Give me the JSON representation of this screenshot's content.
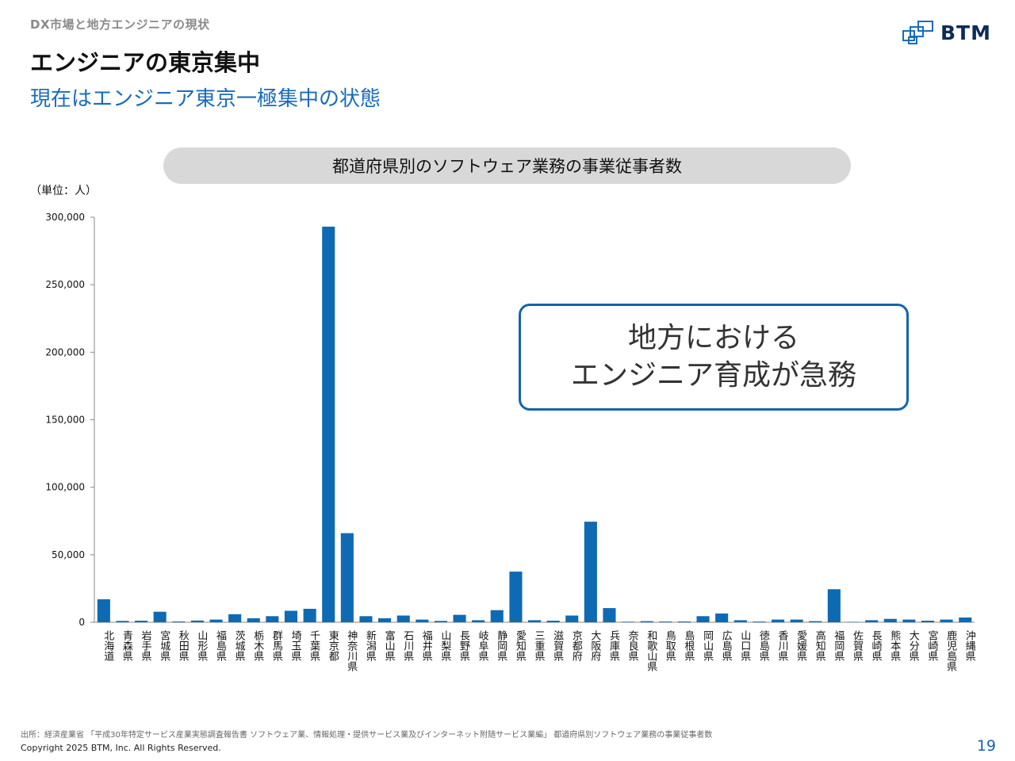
{
  "header": {
    "breadcrumb": "DX市場と地方エンジニアの現状",
    "title": "エンジニアの東京集中",
    "subtitle": "現在はエンジニア東京一極集中の状態",
    "logo_text": "BTM"
  },
  "callout": {
    "line1": "地方における",
    "line2": "エンジニア育成が急務"
  },
  "footer": {
    "source": "出所：経済産業省 「平成30年特定サービス産業実態調査報告書 ソフトウェア業、情報処理・提供サービス業及びインターネット附随サービス業編」 都道府県別ソフトウェア業務の事業従事者数",
    "copyright": "Copyright 2025 BTM, Inc. All Rights Reserved.",
    "page_number": "19"
  },
  "colors": {
    "bar": "#0f6ab4",
    "accent": "#1565ac",
    "pill": "#d8d8d8"
  },
  "chart_data": {
    "type": "bar",
    "title": "都道府県別のソフトウェア業務の事業従事者数",
    "unit_label": "（単位：人）",
    "ylim": [
      0,
      300000
    ],
    "yticks": [
      "0",
      "50,000",
      "100,000",
      "150,000",
      "200,000",
      "250,000",
      "300,000"
    ],
    "grid": false,
    "categories": [
      "北海道",
      "青森県",
      "岩手県",
      "宮城県",
      "秋田県",
      "山形県",
      "福島県",
      "茨城県",
      "栃木県",
      "群馬県",
      "埼玉県",
      "千葉県",
      "東京都",
      "神奈川県",
      "新潟県",
      "富山県",
      "石川県",
      "福井県",
      "山梨県",
      "長野県",
      "岐阜県",
      "静岡県",
      "愛知県",
      "三重県",
      "滋賀県",
      "京都府",
      "大阪府",
      "兵庫県",
      "奈良県",
      "和歌山県",
      "鳥取県",
      "島根県",
      "岡山県",
      "広島県",
      "山口県",
      "徳島県",
      "香川県",
      "愛媛県",
      "高知県",
      "福岡県",
      "佐賀県",
      "長崎県",
      "熊本県",
      "大分県",
      "宮崎県",
      "鹿児島県",
      "沖縄県"
    ],
    "values": [
      17000,
      1000,
      1200,
      7800,
      600,
      1300,
      2000,
      6000,
      3000,
      4500,
      8500,
      10000,
      293000,
      66000,
      4500,
      3000,
      5000,
      2000,
      1000,
      5500,
      1500,
      9000,
      37500,
      1500,
      1200,
      5000,
      74500,
      10500,
      400,
      800,
      500,
      600,
      4500,
      6500,
      1500,
      500,
      2000,
      2000,
      800,
      24500,
      300,
      1500,
      2500,
      2000,
      1200,
      2000,
      3500
    ]
  }
}
